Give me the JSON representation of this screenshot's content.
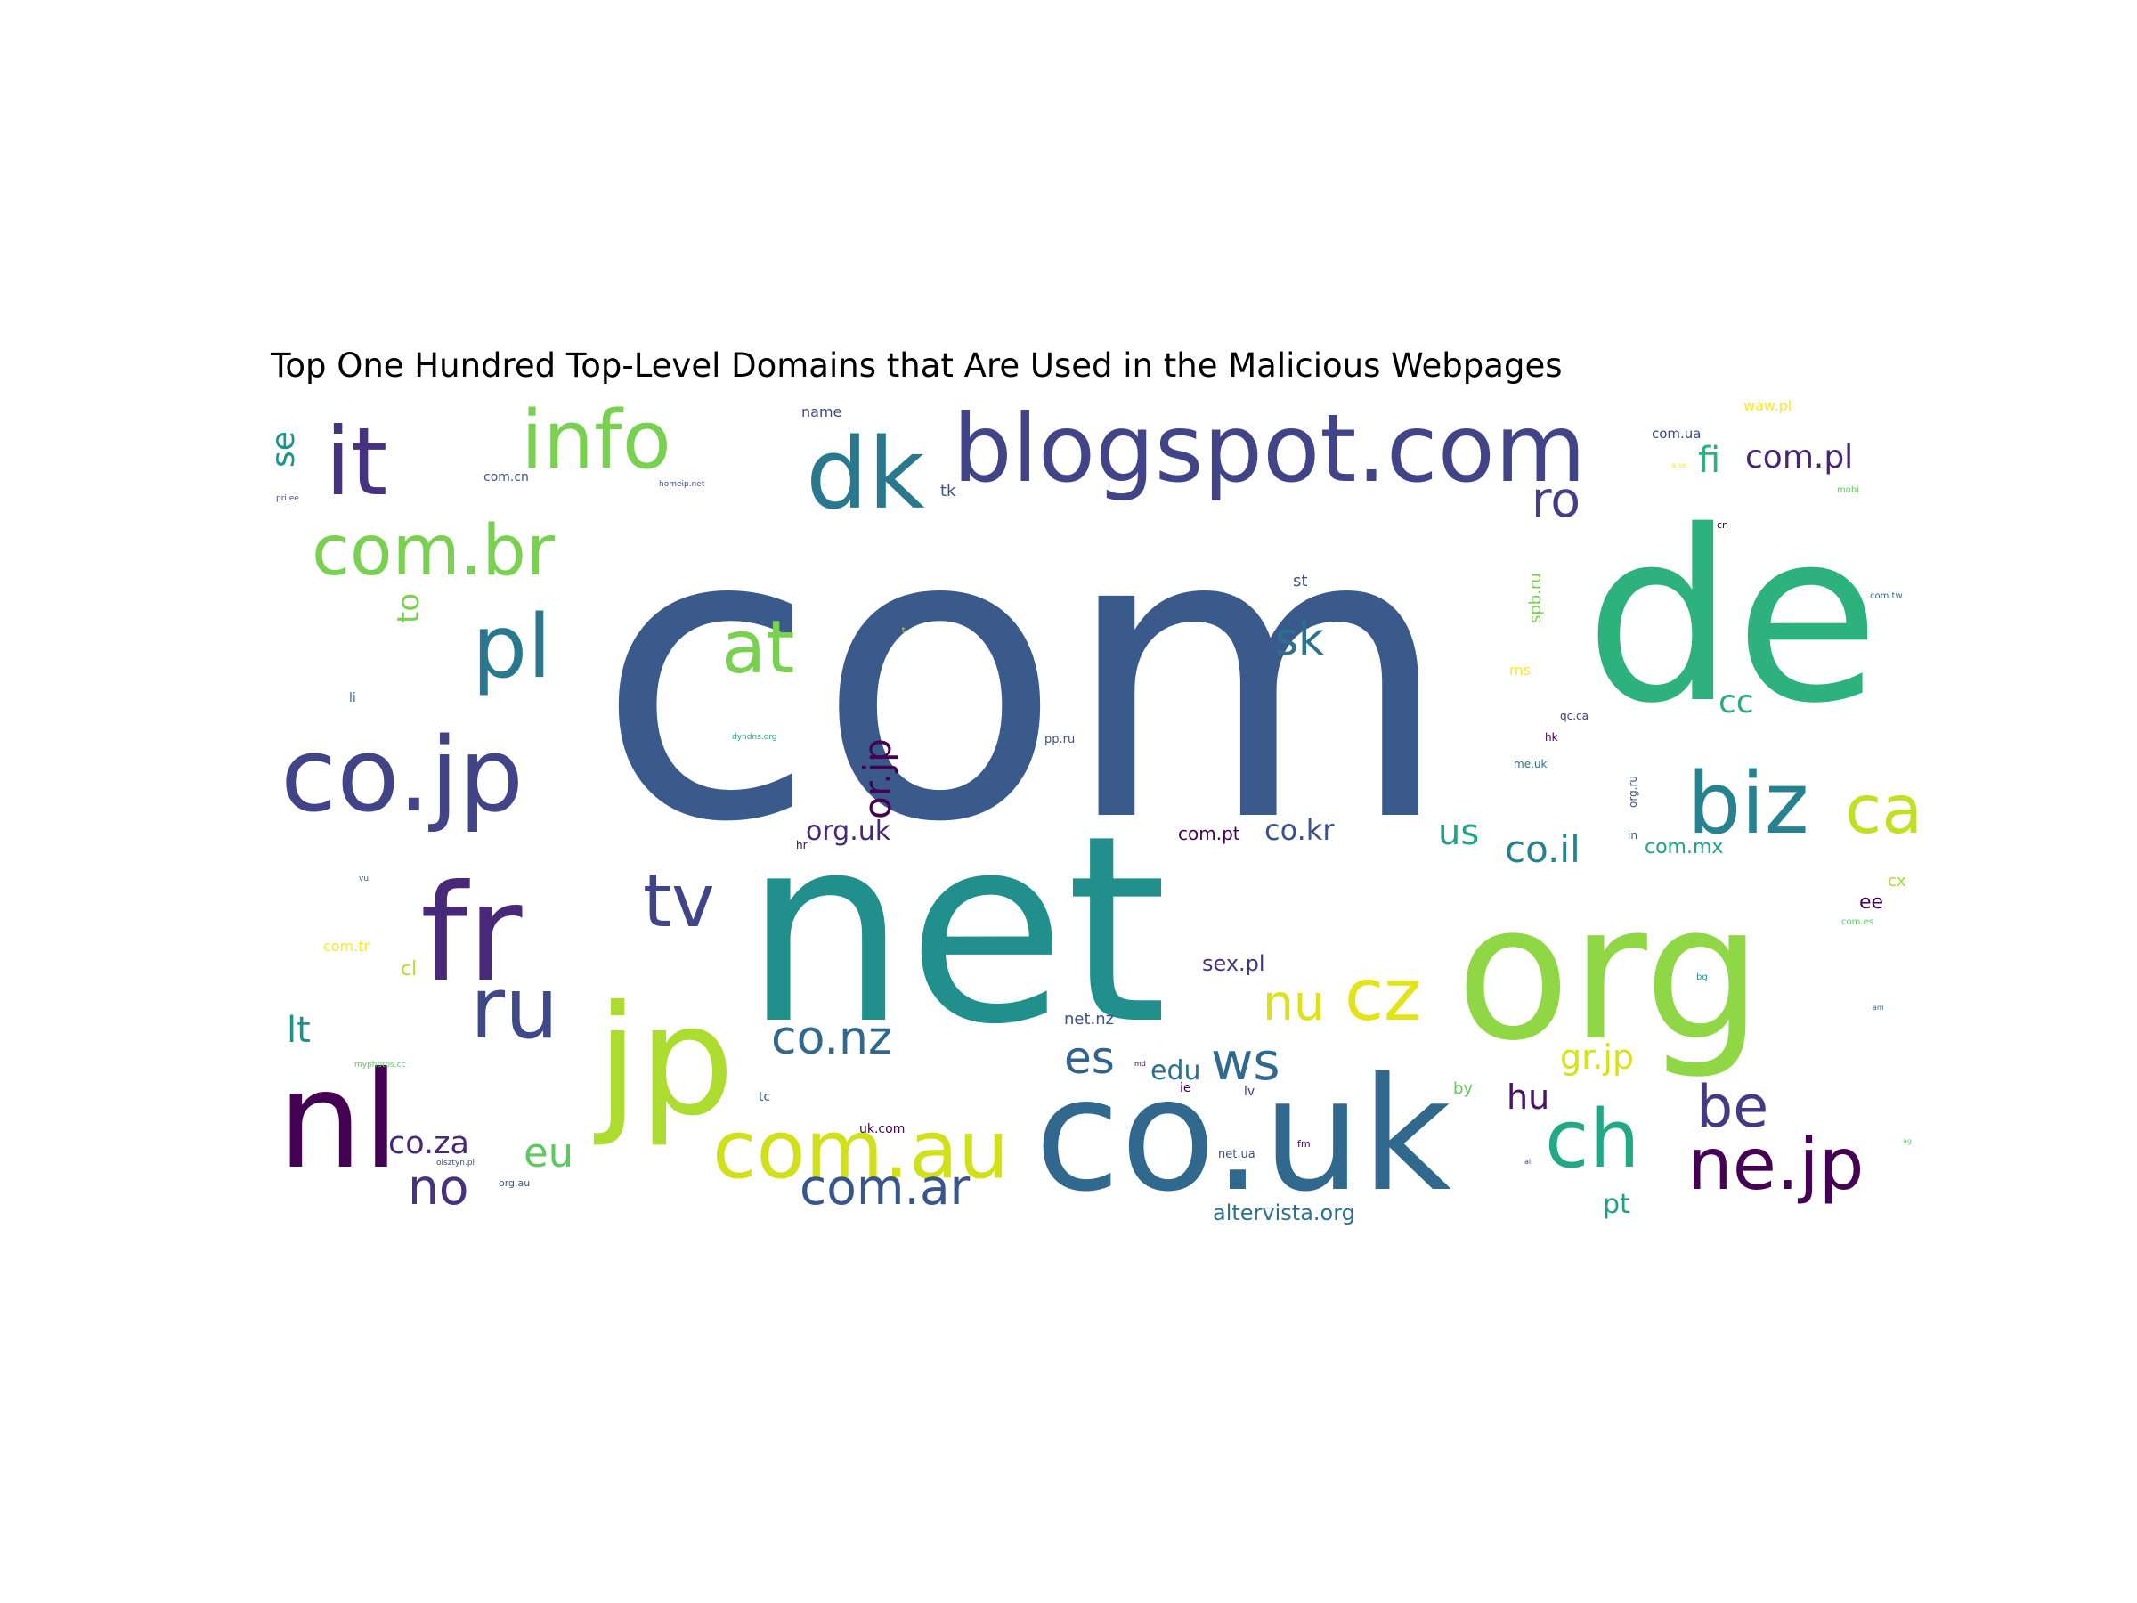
{
  "chart_data": {
    "type": "wordcloud",
    "title": "Top One Hundred Top-Level Domains that Are Used in the Malicious Webpages",
    "words": [
      {
        "text": "com",
        "color": "#3b5a8c"
      },
      {
        "text": "net",
        "color": "#21908d"
      },
      {
        "text": "de",
        "color": "#2db27d"
      },
      {
        "text": "org",
        "color": "#8fd744"
      },
      {
        "text": "co.uk",
        "color": "#31688e"
      },
      {
        "text": "blogspot.com",
        "color": "#414487"
      },
      {
        "text": "jp",
        "color": "#addc30"
      },
      {
        "text": "nl",
        "color": "#440154"
      },
      {
        "text": "fr",
        "color": "#482878"
      },
      {
        "text": "co.jp",
        "color": "#414487"
      },
      {
        "text": "dk",
        "color": "#2a788e"
      },
      {
        "text": "com.au",
        "color": "#d0e11c"
      },
      {
        "text": "it",
        "color": "#46327e"
      },
      {
        "text": "info",
        "color": "#7ad151"
      },
      {
        "text": "pl",
        "color": "#2a788e"
      },
      {
        "text": "com.br",
        "color": "#7ad151"
      },
      {
        "text": "ru",
        "color": "#3e4989"
      },
      {
        "text": "ne.jp",
        "color": "#440154"
      },
      {
        "text": "biz",
        "color": "#26828e"
      },
      {
        "text": "ch",
        "color": "#22a884"
      },
      {
        "text": "at",
        "color": "#7ad151"
      },
      {
        "text": "tv",
        "color": "#414487"
      },
      {
        "text": "cz",
        "color": "#e2e418"
      },
      {
        "text": "be",
        "color": "#443a83"
      },
      {
        "text": "ca",
        "color": "#c2df23"
      },
      {
        "text": "co.nz",
        "color": "#31688e"
      },
      {
        "text": "com.ar",
        "color": "#39568c"
      },
      {
        "text": "ws",
        "color": "#31688e"
      },
      {
        "text": "ro",
        "color": "#433e85"
      },
      {
        "text": "sk",
        "color": "#2c728e"
      },
      {
        "text": "es",
        "color": "#33638d"
      },
      {
        "text": "nu",
        "color": "#dde318"
      },
      {
        "text": "no",
        "color": "#46327e"
      },
      {
        "text": "eu",
        "color": "#5ec962"
      },
      {
        "text": "co.il",
        "color": "#26828e"
      },
      {
        "text": "com.pl",
        "color": "#482475"
      },
      {
        "text": "or.jp",
        "color": "#440154"
      },
      {
        "text": "us",
        "color": "#20a386"
      },
      {
        "text": "fi",
        "color": "#2db27d"
      },
      {
        "text": "co.za",
        "color": "#482878"
      },
      {
        "text": "gr.jp",
        "color": "#d8e219"
      },
      {
        "text": "lt",
        "color": "#21918c"
      },
      {
        "text": "co.kr",
        "color": "#3b528b"
      },
      {
        "text": "se",
        "color": "#21918c"
      },
      {
        "text": "hu",
        "color": "#481467"
      },
      {
        "text": "cc",
        "color": "#27ad81"
      },
      {
        "text": "to",
        "color": "#7ad151"
      },
      {
        "text": "edu",
        "color": "#2c728e"
      },
      {
        "text": "org.uk",
        "color": "#482878"
      },
      {
        "text": "pt",
        "color": "#1f9e89"
      },
      {
        "text": "com.mx",
        "color": "#20a386"
      },
      {
        "text": "sex.pl",
        "color": "#46337e"
      },
      {
        "text": "altervista.org",
        "color": "#2c728e"
      },
      {
        "text": "com.pt",
        "color": "#440154"
      },
      {
        "text": "cl",
        "color": "#b5de2b"
      },
      {
        "text": "net.nz",
        "color": "#3b528b"
      },
      {
        "text": "ee",
        "color": "#440154"
      },
      {
        "text": "cx",
        "color": "#a0da39"
      },
      {
        "text": "spb.ru",
        "color": "#7ad151"
      },
      {
        "text": "name",
        "color": "#3e4a89"
      },
      {
        "text": "com.ua",
        "color": "#3e4a89"
      },
      {
        "text": "waw.pl",
        "color": "#fde725"
      },
      {
        "text": "st",
        "color": "#3b528b"
      },
      {
        "text": "tk",
        "color": "#3b528b"
      },
      {
        "text": "by",
        "color": "#5ec962"
      },
      {
        "text": "com.tr",
        "color": "#fde725"
      },
      {
        "text": "com.cn",
        "color": "#3b528b"
      },
      {
        "text": "uk.com",
        "color": "#440154"
      },
      {
        "text": "li",
        "color": "#2c728e"
      },
      {
        "text": "pp.ru",
        "color": "#3b528b"
      },
      {
        "text": "ms",
        "color": "#fde725"
      },
      {
        "text": "qc.ca",
        "color": "#46327e"
      },
      {
        "text": "ie",
        "color": "#440154"
      },
      {
        "text": "lv",
        "color": "#46337e"
      },
      {
        "text": "tc",
        "color": "#3b528b"
      },
      {
        "text": "org.ru",
        "color": "#3b528b"
      },
      {
        "text": "hk",
        "color": "#440154"
      },
      {
        "text": "me.uk",
        "color": "#2c728e"
      },
      {
        "text": "net.ua",
        "color": "#3b528b"
      },
      {
        "text": "in",
        "color": "#3b528b"
      },
      {
        "text": "hr",
        "color": "#440154"
      },
      {
        "text": "org.au",
        "color": "#3b528b"
      },
      {
        "text": "fm",
        "color": "#440154"
      },
      {
        "text": "cn",
        "color": "#440154"
      },
      {
        "text": "com.tw",
        "color": "#31688e"
      },
      {
        "text": "mobi",
        "color": "#5ec962"
      },
      {
        "text": "com.es",
        "color": "#5ec962"
      },
      {
        "text": "olsztyn.pl",
        "color": "#3e4a89"
      },
      {
        "text": "myphotos.cc",
        "color": "#5ec962"
      },
      {
        "text": "homeip.net",
        "color": "#3b528b"
      },
      {
        "text": "dyndns.org",
        "color": "#22a884"
      },
      {
        "text": "pri.ee",
        "color": "#3e4a89"
      },
      {
        "text": "vu",
        "color": "#3b528b"
      },
      {
        "text": "bg",
        "color": "#21918c"
      },
      {
        "text": "am",
        "color": "#31688e"
      },
      {
        "text": "ag",
        "color": "#5ec962"
      },
      {
        "text": "ai",
        "color": "#3e4a89"
      },
      {
        "text": "md",
        "color": "#440154"
      },
      {
        "text": "tl",
        "color": "#fde725"
      },
      {
        "text": "a.se",
        "color": "#fde725"
      }
    ]
  }
}
